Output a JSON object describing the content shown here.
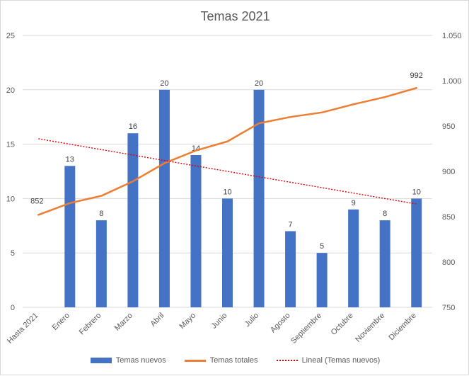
{
  "chart_data": {
    "type": "bar",
    "title": "Temas 2021",
    "categories": [
      "Hasta 2021",
      "Enero",
      "Febrero",
      "Marzo",
      "Abril",
      "Mayo",
      "Junio",
      "Julio",
      "Agosto",
      "Septiembre",
      "Octubre",
      "Noviembre",
      "Diciembre"
    ],
    "series": [
      {
        "name": "Temas nuevos",
        "type": "bar",
        "axis": "left",
        "color": "#4472c4",
        "values": [
          null,
          13,
          8,
          16,
          20,
          14,
          10,
          20,
          7,
          5,
          9,
          8,
          10
        ]
      },
      {
        "name": "Temas totales",
        "type": "line",
        "axis": "right",
        "color": "#ed7d31",
        "values": [
          852,
          865,
          873,
          889,
          909,
          923,
          933,
          953,
          960,
          965,
          974,
          982,
          992
        ]
      },
      {
        "name": "Lineal (Temas nuevos)",
        "type": "trendline",
        "axis": "left",
        "color": "#e00000",
        "values": [
          15.5,
          15.0,
          14.5,
          14.0,
          13.5,
          13.0,
          12.5,
          12.0,
          11.5,
          11.0,
          10.5,
          10.0,
          9.5
        ]
      }
    ],
    "data_labels": {
      "bars": [
        "",
        "13",
        "8",
        "16",
        "20",
        "14",
        "10",
        "20",
        "7",
        "5",
        "9",
        "8",
        "10"
      ],
      "line_first": "852",
      "line_last": "992"
    },
    "y_left": {
      "ylim": [
        0,
        25
      ],
      "ticks": [
        "0",
        "5",
        "10",
        "15",
        "20",
        "25"
      ],
      "tick_values": [
        0,
        5,
        10,
        15,
        20,
        25
      ]
    },
    "y_right": {
      "ylim": [
        750,
        1050
      ],
      "ticks": [
        "750",
        "800",
        "850",
        "900",
        "950",
        "1.000",
        "1.050"
      ],
      "tick_values": [
        750,
        800,
        850,
        900,
        950,
        1000,
        1050
      ]
    },
    "grid": true,
    "legend_position": "bottom",
    "legend": [
      "Temas nuevos",
      "Temas totales",
      "Lineal (Temas nuevos)"
    ]
  }
}
